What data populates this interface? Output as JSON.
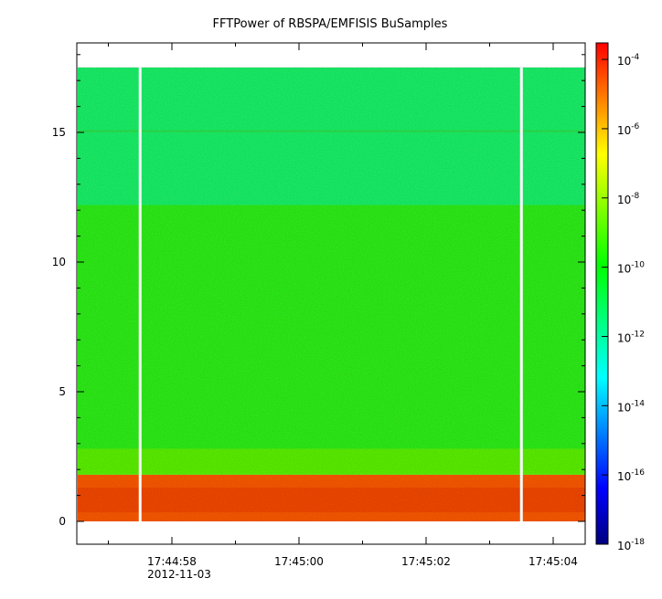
{
  "chart_data": {
    "type": "heatmap",
    "title": "FFTPower of RBSPA/EMFISIS  BuSamples",
    "date_label": "2012-11-03",
    "x_ticks": [
      "17:44:58",
      "17:45:00",
      "17:45:02",
      "17:45:04"
    ],
    "y_ticks": [
      0,
      5,
      10,
      15
    ],
    "ylim": [
      -0.8,
      18.6
    ],
    "y_data_range": [
      0,
      17.5
    ],
    "data_gaps": [
      "17:44:57.5",
      "17:45:03.5"
    ],
    "colorbar": {
      "scale": "log",
      "range": [
        "1e-18",
        "3e-4"
      ],
      "tick_base": "10",
      "tick_exponents": [
        "-4",
        "-6",
        "-8",
        "-10",
        "-12",
        "-14",
        "-16",
        "-18"
      ],
      "colormap": [
        "#00007f",
        "#0000ff",
        "#0080ff",
        "#00ffff",
        "#00ff80",
        "#00ff00",
        "#80ff00",
        "#ffff00",
        "#ff8000",
        "#ff0000"
      ]
    },
    "power_bands": [
      {
        "y_range": [
          0,
          1.8
        ],
        "level": "1e-5",
        "color": "#ff5a00"
      },
      {
        "y_range": [
          1.8,
          2.8
        ],
        "level": "1e-9",
        "color": "#5cf500"
      },
      {
        "y_range": [
          2.8,
          12.2
        ],
        "level": "1e-10",
        "color": "#2ef218"
      },
      {
        "y_range": [
          12.2,
          17.5
        ],
        "level": "1e-11",
        "color": "#1af56a"
      }
    ],
    "grid": false
  }
}
